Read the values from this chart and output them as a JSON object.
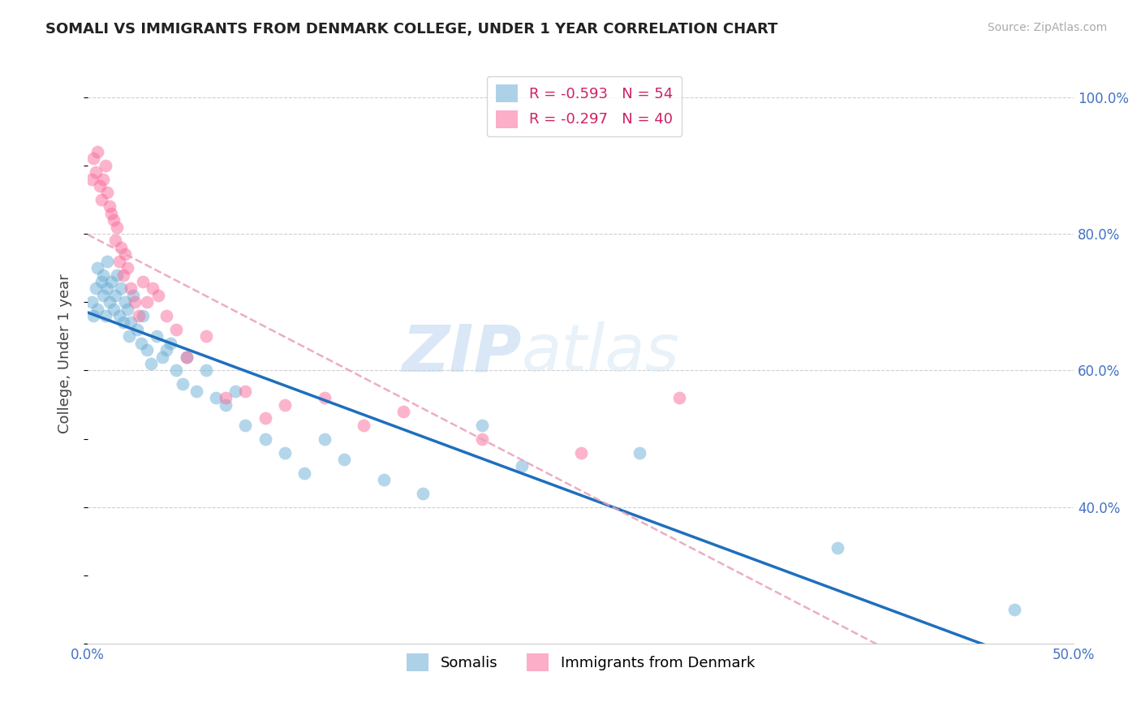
{
  "title": "SOMALI VS IMMIGRANTS FROM DENMARK COLLEGE, UNDER 1 YEAR CORRELATION CHART",
  "source": "Source: ZipAtlas.com",
  "ylabel": "College, Under 1 year",
  "xlim": [
    0.0,
    0.5
  ],
  "ylim": [
    0.2,
    1.05
  ],
  "xticks": [
    0.0,
    0.1,
    0.2,
    0.3,
    0.4,
    0.5
  ],
  "xticklabels": [
    "0.0%",
    "",
    "",
    "",
    "",
    "50.0%"
  ],
  "yticks_right": [
    0.4,
    0.6,
    0.8,
    1.0
  ],
  "ytick_right_labels": [
    "40.0%",
    "60.0%",
    "80.0%",
    "100.0%"
  ],
  "watermark_zip": "ZIP",
  "watermark_atlas": "atlas",
  "legend_r1": "R = -0.593",
  "legend_n1": "N = 54",
  "legend_r2": "R = -0.297",
  "legend_n2": "N = 40",
  "color_somali": "#6baed6",
  "color_denmark": "#fb6a9a",
  "trendline_somali_color": "#1f6fbd",
  "trendline_denmark_color": "#e8a0b8",
  "background_color": "#ffffff",
  "grid_color": "#d0d0d0",
  "somali_x": [
    0.002,
    0.003,
    0.004,
    0.005,
    0.005,
    0.007,
    0.008,
    0.008,
    0.009,
    0.01,
    0.01,
    0.011,
    0.012,
    0.013,
    0.014,
    0.015,
    0.016,
    0.017,
    0.018,
    0.019,
    0.02,
    0.021,
    0.022,
    0.023,
    0.025,
    0.027,
    0.028,
    0.03,
    0.032,
    0.035,
    0.038,
    0.04,
    0.042,
    0.045,
    0.048,
    0.05,
    0.055,
    0.06,
    0.065,
    0.07,
    0.075,
    0.08,
    0.09,
    0.1,
    0.11,
    0.12,
    0.13,
    0.15,
    0.17,
    0.2,
    0.22,
    0.28,
    0.38,
    0.47
  ],
  "somali_y": [
    0.7,
    0.68,
    0.72,
    0.69,
    0.75,
    0.73,
    0.71,
    0.74,
    0.68,
    0.72,
    0.76,
    0.7,
    0.73,
    0.69,
    0.71,
    0.74,
    0.68,
    0.72,
    0.67,
    0.7,
    0.69,
    0.65,
    0.67,
    0.71,
    0.66,
    0.64,
    0.68,
    0.63,
    0.61,
    0.65,
    0.62,
    0.63,
    0.64,
    0.6,
    0.58,
    0.62,
    0.57,
    0.6,
    0.56,
    0.55,
    0.57,
    0.52,
    0.5,
    0.48,
    0.45,
    0.5,
    0.47,
    0.44,
    0.42,
    0.52,
    0.46,
    0.48,
    0.34,
    0.25
  ],
  "denmark_x": [
    0.002,
    0.003,
    0.004,
    0.005,
    0.006,
    0.007,
    0.008,
    0.009,
    0.01,
    0.011,
    0.012,
    0.013,
    0.014,
    0.015,
    0.016,
    0.017,
    0.018,
    0.019,
    0.02,
    0.022,
    0.024,
    0.026,
    0.028,
    0.03,
    0.033,
    0.036,
    0.04,
    0.045,
    0.05,
    0.06,
    0.07,
    0.08,
    0.09,
    0.1,
    0.12,
    0.14,
    0.16,
    0.2,
    0.25,
    0.3
  ],
  "denmark_y": [
    0.88,
    0.91,
    0.89,
    0.92,
    0.87,
    0.85,
    0.88,
    0.9,
    0.86,
    0.84,
    0.83,
    0.82,
    0.79,
    0.81,
    0.76,
    0.78,
    0.74,
    0.77,
    0.75,
    0.72,
    0.7,
    0.68,
    0.73,
    0.7,
    0.72,
    0.71,
    0.68,
    0.66,
    0.62,
    0.65,
    0.56,
    0.57,
    0.53,
    0.55,
    0.56,
    0.52,
    0.54,
    0.5,
    0.48,
    0.56
  ]
}
